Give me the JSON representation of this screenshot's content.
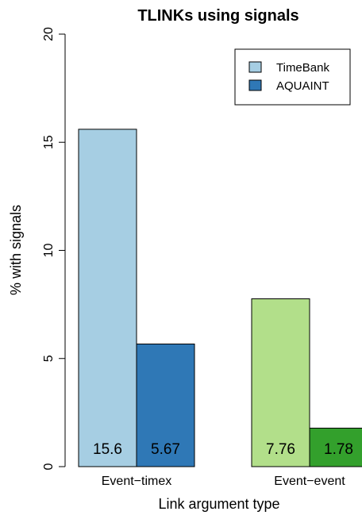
{
  "chart_data": {
    "type": "bar",
    "title": "TLINKs using signals",
    "xlabel": "Link argument type",
    "ylabel": "% with signals",
    "ylim": [
      0,
      20
    ],
    "yticks": [
      0,
      5,
      10,
      15,
      20
    ],
    "grid": false,
    "legend_position": "top-right",
    "categories": [
      "Event−timex",
      "Event−event"
    ],
    "series": [
      {
        "name": "TimeBank",
        "values": [
          15.6,
          7.76
        ],
        "labels": [
          "15.6",
          "7.76"
        ]
      },
      {
        "name": "AQUAINT",
        "values": [
          5.67,
          1.78
        ],
        "labels": [
          "5.67",
          "1.78"
        ]
      }
    ],
    "legend": [
      {
        "label": "TimeBank",
        "color": "#a6cee3"
      },
      {
        "label": "AQUAINT",
        "color": "#2f78b6"
      }
    ],
    "bar_colors": [
      [
        "#a6cee3",
        "#2f78b6"
      ],
      [
        "#b2df8a",
        "#33a02c"
      ]
    ]
  }
}
